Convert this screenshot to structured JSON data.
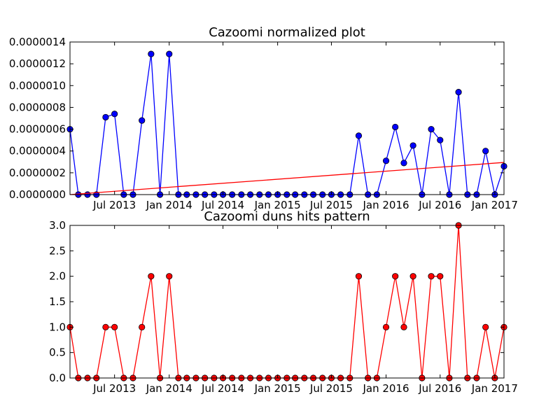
{
  "chart_data": [
    {
      "type": "line",
      "title": "Cazoomi normalized plot",
      "xlabel": "",
      "ylabel": "",
      "xlim": [
        "2013-02-01",
        "2017-02-01"
      ],
      "ylim": [
        0,
        1.4e-06
      ],
      "grid": false,
      "x_tick_labels": [
        "Jul 2013",
        "Jan 2014",
        "Jul 2014",
        "Jan 2015",
        "Jul 2015",
        "Jan 2016",
        "Jul 2016",
        "Jan 2017"
      ],
      "y_tick_labels": [
        "0.0000000",
        "0.0000002",
        "0.0000004",
        "0.0000006",
        "0.0000008",
        "0.0000010",
        "0.0000012",
        "0.0000014"
      ],
      "x": [
        "2013-02-01",
        "2013-03-01",
        "2013-04-01",
        "2013-05-01",
        "2013-06-01",
        "2013-07-01",
        "2013-08-01",
        "2013-09-01",
        "2013-10-01",
        "2013-11-01",
        "2013-12-01",
        "2014-01-01",
        "2014-02-01",
        "2014-03-01",
        "2014-04-01",
        "2014-05-01",
        "2014-06-01",
        "2014-07-01",
        "2014-08-01",
        "2014-09-01",
        "2014-10-01",
        "2014-11-01",
        "2014-12-01",
        "2015-01-01",
        "2015-02-01",
        "2015-03-01",
        "2015-04-01",
        "2015-05-01",
        "2015-06-01",
        "2015-07-01",
        "2015-08-01",
        "2015-09-01",
        "2015-10-01",
        "2015-11-01",
        "2015-12-01",
        "2016-01-01",
        "2016-02-01",
        "2016-03-01",
        "2016-04-01",
        "2016-05-01",
        "2016-06-01",
        "2016-07-01",
        "2016-08-01",
        "2016-09-01",
        "2016-10-01",
        "2016-11-01",
        "2016-12-01",
        "2017-01-01",
        "2017-02-01"
      ],
      "series": [
        {
          "color": "#0000ff",
          "marker": "circle",
          "values": [
            6e-07,
            0,
            0,
            0,
            7.1e-07,
            7.4e-07,
            0,
            0,
            6.8e-07,
            1.29e-06,
            0,
            1.29e-06,
            0,
            0,
            0,
            0,
            0,
            0,
            0,
            0,
            0,
            0,
            0,
            0,
            0,
            0,
            0,
            0,
            0,
            0,
            0,
            0,
            5.4e-07,
            0,
            0,
            3.1e-07,
            6.2e-07,
            2.9e-07,
            4.5e-07,
            0,
            6e-07,
            5e-07,
            0,
            9.4e-07,
            0,
            0,
            4e-07,
            0,
            2.6e-07
          ]
        },
        {
          "color": "#ff0000",
          "marker": "none",
          "x": [
            "2013-02-01",
            "2017-02-01"
          ],
          "values": [
            0,
            2.95e-07
          ]
        }
      ]
    },
    {
      "type": "line",
      "title": "Cazoomi duns hits pattern",
      "xlabel": "",
      "ylabel": "",
      "xlim": [
        "2013-02-01",
        "2017-02-01"
      ],
      "ylim": [
        0,
        3.0
      ],
      "grid": false,
      "x_tick_labels": [
        "Jul 2013",
        "Jan 2014",
        "Jul 2014",
        "Jan 2015",
        "Jul 2015",
        "Jan 2016",
        "Jul 2016",
        "Jan 2017"
      ],
      "y_tick_labels": [
        "0.0",
        "0.5",
        "1.0",
        "1.5",
        "2.0",
        "2.5",
        "3.0"
      ],
      "x": [
        "2013-02-01",
        "2013-03-01",
        "2013-04-01",
        "2013-05-01",
        "2013-06-01",
        "2013-07-01",
        "2013-08-01",
        "2013-09-01",
        "2013-10-01",
        "2013-11-01",
        "2013-12-01",
        "2014-01-01",
        "2014-02-01",
        "2014-03-01",
        "2014-04-01",
        "2014-05-01",
        "2014-06-01",
        "2014-07-01",
        "2014-08-01",
        "2014-09-01",
        "2014-10-01",
        "2014-11-01",
        "2014-12-01",
        "2015-01-01",
        "2015-02-01",
        "2015-03-01",
        "2015-04-01",
        "2015-05-01",
        "2015-06-01",
        "2015-07-01",
        "2015-08-01",
        "2015-09-01",
        "2015-10-01",
        "2015-11-01",
        "2015-12-01",
        "2016-01-01",
        "2016-02-01",
        "2016-03-01",
        "2016-04-01",
        "2016-05-01",
        "2016-06-01",
        "2016-07-01",
        "2016-08-01",
        "2016-09-01",
        "2016-10-01",
        "2016-11-01",
        "2016-12-01",
        "2017-01-01",
        "2017-02-01"
      ],
      "series": [
        {
          "color": "#ff0000",
          "marker": "circle",
          "values": [
            1,
            0,
            0,
            0,
            1,
            1,
            0,
            0,
            1,
            2,
            0,
            2,
            0,
            0,
            0,
            0,
            0,
            0,
            0,
            0,
            0,
            0,
            0,
            0,
            0,
            0,
            0,
            0,
            0,
            0,
            0,
            0,
            2,
            0,
            0,
            1,
            2,
            1,
            2,
            0,
            2,
            2,
            0,
            3,
            0,
            0,
            1,
            0,
            1
          ]
        }
      ]
    }
  ]
}
